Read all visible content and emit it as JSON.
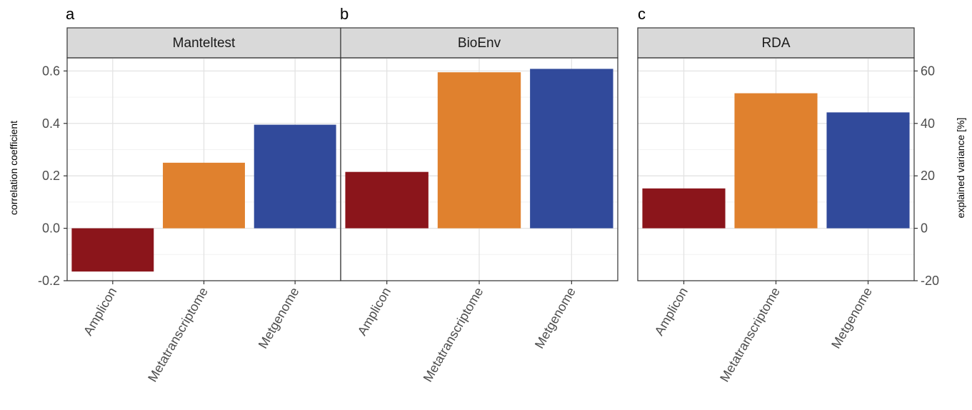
{
  "chart_data": [
    {
      "panel": "a",
      "type": "bar",
      "strip_title": "Manteltest",
      "categories": [
        "Amplicon",
        "Metatranscriptome",
        "Metgenome"
      ],
      "values": [
        -0.165,
        0.25,
        0.395
      ],
      "ylabel": "correlation coefficient",
      "ylim": [
        -0.2,
        0.65
      ],
      "yticks": [
        "-0.2",
        "0.0",
        "0.2",
        "0.4",
        "0.6"
      ],
      "colors": [
        "#8b151b",
        "#e0812e",
        "#314a9b"
      ]
    },
    {
      "panel": "b",
      "type": "bar",
      "strip_title": "BioEnv",
      "categories": [
        "Amplicon",
        "Metatranscriptome",
        "Metgenome"
      ],
      "values": [
        0.215,
        0.595,
        0.608
      ],
      "ylim": [
        -0.2,
        0.65
      ],
      "colors": [
        "#8b151b",
        "#e0812e",
        "#314a9b"
      ]
    },
    {
      "panel": "c",
      "type": "bar",
      "strip_title": "RDA",
      "categories": [
        "Amplicon",
        "Metatranscriptome",
        "Metgenome"
      ],
      "values": [
        15.2,
        51.5,
        44.2
      ],
      "ylabel": "explained variance [%]",
      "ylim": [
        -20,
        65
      ],
      "yticks": [
        "-20",
        "0",
        "20",
        "40",
        "60"
      ],
      "colors": [
        "#8b151b",
        "#e0812e",
        "#314a9b"
      ]
    }
  ]
}
